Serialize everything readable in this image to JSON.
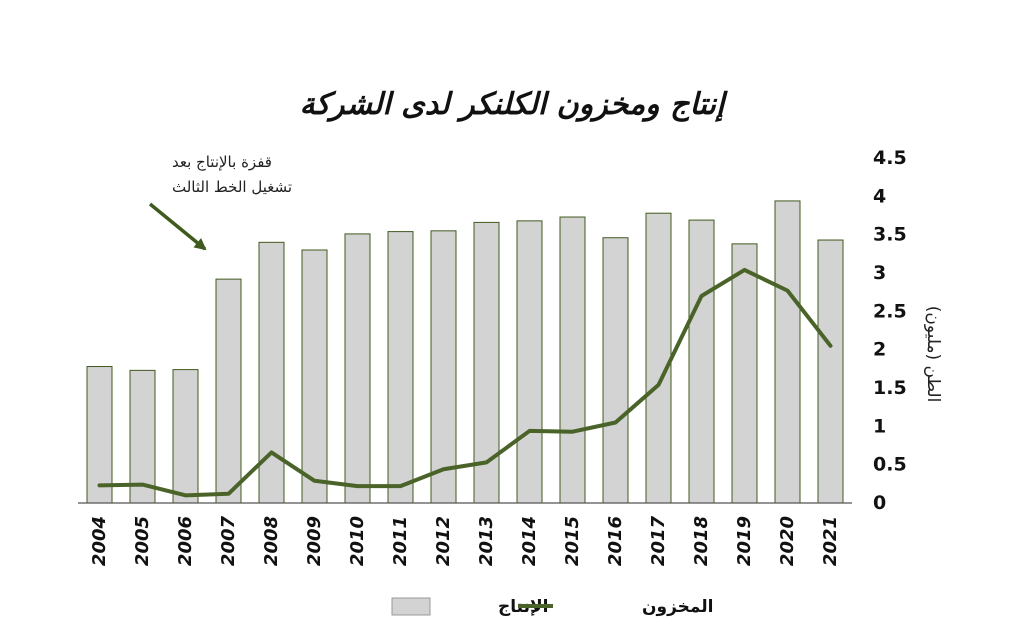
{
  "chart_data": {
    "type": "bar",
    "title": "إنتاج ومخزون الكلنكر لدى الشركة",
    "ylabel": "الطن (مليون)",
    "ylim": [
      0,
      4.5
    ],
    "yticks": [
      "0",
      "0.5",
      "1",
      "1.5",
      "2",
      "2.5",
      "3",
      "3.5",
      "4",
      "4.5"
    ],
    "grid": false,
    "legend_position": "bottom",
    "categories": [
      "2004",
      "2005",
      "2006",
      "2007",
      "2008",
      "2009",
      "2010",
      "2011",
      "2012",
      "2013",
      "2014",
      "2015",
      "2016",
      "2017",
      "2018",
      "2019",
      "2020",
      "2021"
    ],
    "series": [
      {
        "name": "الإنتاج",
        "type": "bar",
        "color": "#d3d3d3",
        "values": [
          1.78,
          1.73,
          1.74,
          2.92,
          3.4,
          3.3,
          3.51,
          3.54,
          3.55,
          3.66,
          3.68,
          3.73,
          3.46,
          3.78,
          3.69,
          3.38,
          3.94,
          3.43
        ]
      },
      {
        "name": "المخزون",
        "type": "line",
        "color": "#4a6328",
        "values": [
          0.23,
          0.24,
          0.1,
          0.12,
          0.66,
          0.29,
          0.22,
          0.22,
          0.44,
          0.53,
          0.94,
          0.93,
          1.05,
          1.54,
          2.7,
          3.04,
          2.77,
          2.05
        ]
      }
    ],
    "annotation": {
      "line1": "قفزة بالإنتاج بعد",
      "line2": "تشغيل الخط الثالث",
      "points_to": "2007"
    }
  }
}
